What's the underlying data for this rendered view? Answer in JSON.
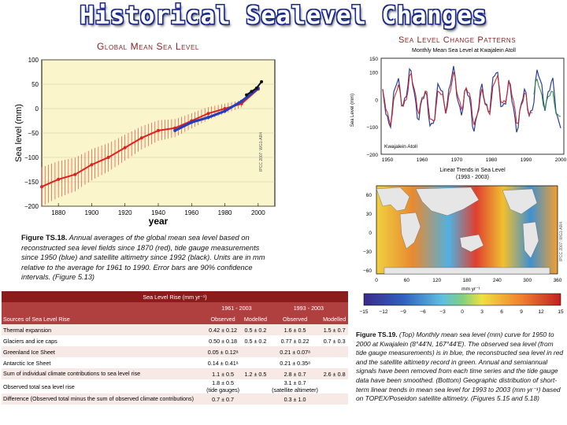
{
  "title": "Historical Sealevel Changes",
  "left_panel": {
    "heading": "Global Mean Sea Level",
    "chart_data": {
      "type": "line",
      "ylabel": "Sea level (mm)",
      "xlabel": "year",
      "xlim": [
        1870,
        2010
      ],
      "ylim": [
        -200,
        100
      ],
      "xticks": [
        "1880",
        "1900",
        "1920",
        "1940",
        "1960",
        "1980",
        "2000"
      ],
      "yticks": [
        "100",
        "50",
        "0",
        "−50",
        "−100",
        "−150",
        "−200"
      ],
      "series": [
        {
          "color": "#e02020",
          "x": [
            1870,
            1880,
            1890,
            1900,
            1910,
            1920,
            1930,
            1940,
            1950,
            1960,
            1970,
            1980,
            1990,
            2000
          ],
          "y": [
            -160,
            -145,
            -135,
            -115,
            -100,
            -80,
            -60,
            -45,
            -40,
            -25,
            -10,
            0,
            10,
            40
          ]
        },
        {
          "color": "#2040c0",
          "x": [
            1950,
            1960,
            1970,
            1980,
            1990,
            2000
          ],
          "y": [
            -45,
            -28,
            -18,
            -5,
            15,
            42
          ]
        },
        {
          "color": "#111111",
          "x": [
            1993,
            1996,
            1999,
            2002
          ],
          "y": [
            28,
            35,
            42,
            55
          ]
        }
      ]
    },
    "watermark": "IPCC 2007: WG1-AR4",
    "caption_label": "Figure TS.18.",
    "caption_text": "Annual averages of the global mean sea level based on reconstructed sea level fields since 1870 (red), tide gauge measurements since 1950 (blue) and satellite altimetry since 1992 (black). Units are in mm relative to the average for 1961 to 1990. Error bars are 90% confidence intervals. (Figure 5.13)"
  },
  "right_panel": {
    "heading": "Sea Level Change Patterns",
    "top_chart": {
      "title": "Monthly Mean Sea Level at Kwajalein Atoll",
      "ylabel": "Sea Level (mm)",
      "inset_label": "Kwajalein Atoll",
      "yticks": [
        "150",
        "100",
        "0",
        "−100",
        "−200"
      ],
      "xticks": [
        "1950",
        "1960",
        "1970",
        "1980",
        "1990",
        "2000"
      ]
    },
    "map": {
      "title_line1": "Linear Trends in Sea Level",
      "title_line2": "(1993 - 2003)",
      "lat_ticks": [
        "60",
        "30",
        "0",
        "−30",
        "−60"
      ],
      "lon_ticks": [
        "0",
        "60",
        "120",
        "180",
        "240",
        "300",
        "360"
      ],
      "units": "mm yr⁻¹",
      "colorbar_ticks": [
        "−15",
        "−12",
        "−9",
        "−6",
        "−3",
        "0",
        "3",
        "6",
        "9",
        "12",
        "15"
      ],
      "watermark": "IPCC 2007: WG1-AR4"
    },
    "caption_label": "Figure TS.19.",
    "caption_text": "(Top) Monthly mean sea level (mm) curve for 1950 to 2000 at Kwajalein (8°44'N, 167°44'E). The observed sea level (from tide gauge measurements) is in blue, the reconstructed sea level in red and the satellite altimetry record in green. Annual and semiannual signals have been removed from each time series and the tide gauge data have been smoothed. (Bottom) Geographic distribution of short-term linear trends in mean sea level for 1993 to 2003 (mm yr⁻¹) based on TOPEX/Poseidon satellite altimetry. (Figures 5.15 and 5.18)"
  },
  "table": {
    "band_title": "Sea Level Rise (mm yr⁻¹)",
    "period1": "1961 - 2003",
    "period2": "1993 - 2003",
    "col_source": "Sources of Sea Level Rise",
    "col_observed": "Observed",
    "col_modelled": "Modelled",
    "rows": [
      {
        "source": "Thermal expansion",
        "obs1": "0.42 ± 0.12",
        "mod1": "0.5 ± 0.2",
        "obs2": "1.6 ± 0.5",
        "mod2": "1.5 ± 0.7"
      },
      {
        "source": "Glaciers and ice caps",
        "obs1": "0.50 ± 0.18",
        "mod1": "0.5 ± 0.2",
        "obs2": "0.77 ± 0.22",
        "mod2": "0.7 ± 0.3"
      },
      {
        "source": "Greenland Ice Sheet",
        "obs1": "0.05 ± 0.12ᵃ",
        "mod1": "",
        "obs2": "0.21 ± 0.07ᵃ",
        "mod2": ""
      },
      {
        "source": "Antarctic Ice Sheet",
        "obs1": "0.14 ± 0.41ᵃ",
        "mod1": "",
        "obs2": "0.21 ± 0.35ᵃ",
        "mod2": ""
      },
      {
        "source": "Sum of individual climate contributions to sea level rise",
        "obs1": "1.1 ± 0.5",
        "mod1": "1.2 ± 0.5",
        "obs2": "2.8 ± 0.7",
        "mod2": "2.6 ± 0.8"
      },
      {
        "source": "Observed total sea level rise",
        "obs1": "1.8 ± 0.5",
        "obs1_note": "(tide gauges)",
        "mod1": "",
        "obs2": "3.1 ± 0.7",
        "obs2_note": "(satellite altimeter)",
        "mod2": ""
      },
      {
        "source": "Difference (Observed total minus the sum of observed climate contributions)",
        "obs1": "0.7 ± 0.7",
        "mod1": "",
        "obs2": "0.3 ± 1.0",
        "mod2": ""
      }
    ]
  }
}
